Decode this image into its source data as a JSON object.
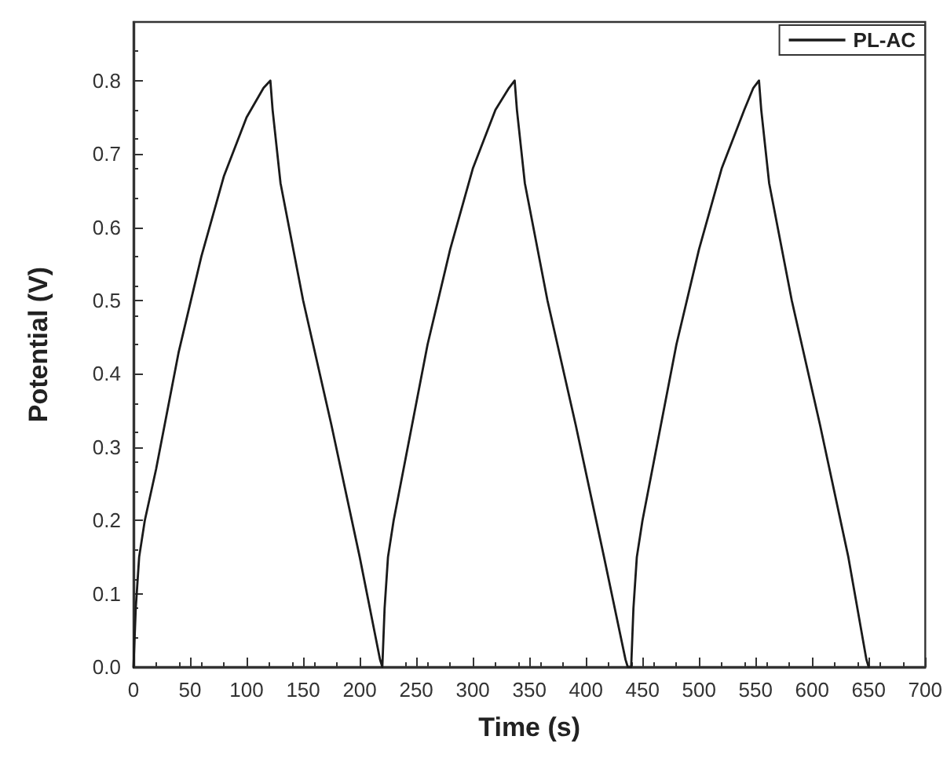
{
  "chart_data": {
    "type": "line",
    "xlabel": "Time (s)",
    "ylabel": "Potential (V)",
    "xlim": [
      0,
      700
    ],
    "xticks": [
      0,
      50,
      100,
      150,
      200,
      250,
      300,
      350,
      400,
      450,
      500,
      550,
      600,
      650,
      700
    ],
    "ylim": [
      0,
      0.88
    ],
    "yticks": [
      {
        "value": 0,
        "label": "0.0"
      },
      0.1,
      0.2,
      0.3,
      0.4,
      0.5,
      0.6,
      0.7,
      0.8
    ],
    "grid": false,
    "legend": "top right",
    "marker": "none",
    "line_style": "solid",
    "series": [
      {
        "name": "PL-AC",
        "color": "#1a1a1a",
        "x": [
          0,
          2,
          5,
          10,
          20,
          40,
          60,
          80,
          100,
          115,
          121,
          123,
          130,
          150,
          175,
          200,
          218,
          220,
          222,
          225,
          230,
          240,
          260,
          280,
          300,
          320,
          332,
          337,
          339,
          346,
          366,
          391,
          416,
          435,
          437,
          440,
          442,
          445,
          450,
          460,
          480,
          500,
          520,
          540,
          548,
          553,
          555,
          562,
          582,
          607,
          632,
          648,
          650
        ],
        "values": [
          0,
          0.08,
          0.15,
          0.2,
          0.27,
          0.43,
          0.56,
          0.67,
          0.75,
          0.79,
          0.8,
          0.76,
          0.66,
          0.5,
          0.33,
          0.15,
          0.01,
          0,
          0.08,
          0.15,
          0.2,
          0.28,
          0.44,
          0.57,
          0.68,
          0.76,
          0.79,
          0.8,
          0.76,
          0.66,
          0.5,
          0.33,
          0.15,
          0.01,
          0,
          0,
          0.08,
          0.15,
          0.2,
          0.28,
          0.44,
          0.57,
          0.68,
          0.76,
          0.79,
          0.8,
          0.76,
          0.66,
          0.5,
          0.33,
          0.15,
          0.01,
          0
        ]
      }
    ]
  }
}
